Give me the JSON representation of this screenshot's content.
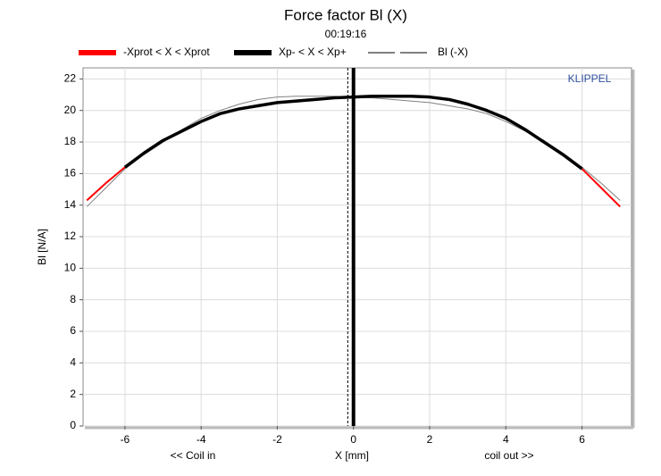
{
  "chart_data": {
    "type": "line",
    "title": "Force factor Bl (X)",
    "subtitle": "00:19:16",
    "x_label": "X [mm]",
    "y_label": "Bl [N/A]",
    "annotations": [
      "<< Coil in",
      "coil out >>",
      "KLIPPEL"
    ],
    "x": [
      -7,
      -6.5,
      -6,
      -5.5,
      -5,
      -4.5,
      -4,
      -3.5,
      -3,
      -2.5,
      -2,
      -1.5,
      -1,
      -0.5,
      0,
      0.5,
      1,
      1.5,
      2,
      2.5,
      3,
      3.5,
      4,
      4.5,
      5,
      5.5,
      6,
      6.5,
      7
    ],
    "series": [
      {
        "name": "-Xprot < X < Xprot",
        "color": "#ff0000",
        "values": [
          14.3,
          15.4,
          16.4,
          17.3,
          18.1,
          18.7,
          19.3,
          19.8,
          20.1,
          20.3,
          20.5,
          20.6,
          20.7,
          20.8,
          20.85,
          20.9,
          20.9,
          20.9,
          20.85,
          20.7,
          20.4,
          20.0,
          19.5,
          18.8,
          18.0,
          17.2,
          16.3,
          15.1,
          13.9
        ]
      },
      {
        "name": "Xp- < X < Xp+",
        "color": "#000000",
        "values": [
          null,
          null,
          16.4,
          17.3,
          18.1,
          18.7,
          19.3,
          19.8,
          20.1,
          20.3,
          20.5,
          20.6,
          20.7,
          20.8,
          20.85,
          20.9,
          20.9,
          20.9,
          20.85,
          20.7,
          20.4,
          20.0,
          19.5,
          18.8,
          18.0,
          17.2,
          16.3,
          null,
          null
        ]
      },
      {
        "name": "Bl (-X)",
        "color": "#808080",
        "values": [
          13.9,
          15.1,
          16.3,
          17.2,
          18.0,
          18.8,
          19.5,
          20.0,
          20.4,
          20.7,
          20.85,
          20.9,
          20.9,
          20.9,
          20.85,
          20.8,
          20.7,
          20.6,
          20.5,
          20.3,
          20.1,
          19.8,
          19.3,
          18.7,
          18.1,
          17.3,
          16.4,
          15.4,
          14.3
        ]
      }
    ],
    "vlines": [
      {
        "x": 0,
        "style": "solid"
      },
      {
        "x": -0.15,
        "style": "dashed"
      }
    ],
    "xlim": [
      -7.1,
      7.3
    ],
    "ylim": [
      0,
      22.7
    ],
    "xticks": [
      -6,
      -4,
      -2,
      0,
      2,
      4,
      6
    ],
    "yticks": [
      0,
      2,
      4,
      6,
      8,
      10,
      12,
      14,
      16,
      18,
      20,
      22
    ],
    "grid": true
  }
}
